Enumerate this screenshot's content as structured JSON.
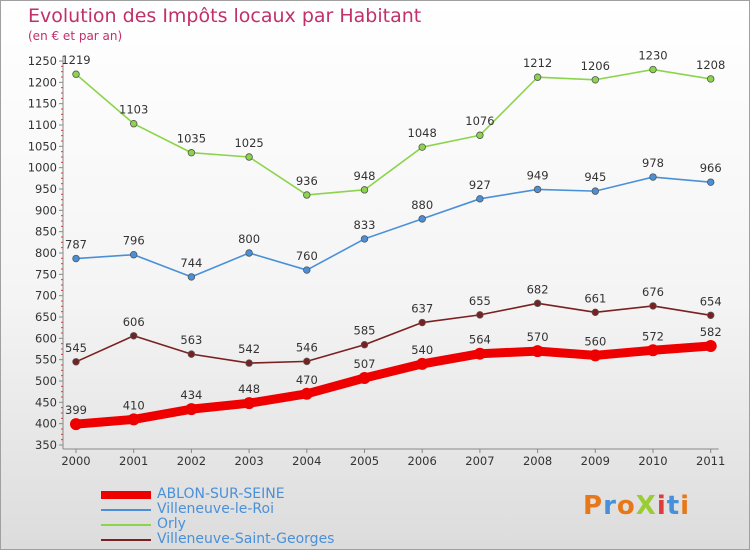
{
  "header": {
    "title": "Evolution des Impôts locaux par Habitant",
    "subtitle": "(en € et par an)"
  },
  "logo": {
    "text": "ProXiti",
    "colors": [
      "#e8771a",
      "#4a90d9",
      "#e8771a",
      "#9acd32",
      "#e03a3a",
      "#4a90d9",
      "#e8771a"
    ]
  },
  "chart_data": {
    "type": "line",
    "title": "Evolution des Impôts locaux par Habitant",
    "subtitle": "(en € et par an)",
    "xlabel": "",
    "ylabel": "",
    "categories": [
      "2000",
      "2001",
      "2002",
      "2003",
      "2004",
      "2005",
      "2006",
      "2007",
      "2008",
      "2009",
      "2010",
      "2011"
    ],
    "ylim": [
      350,
      1250
    ],
    "yticks": [
      350,
      400,
      450,
      500,
      550,
      600,
      650,
      700,
      750,
      800,
      850,
      900,
      950,
      1000,
      1050,
      1100,
      1150,
      1200,
      1250
    ],
    "grid": false,
    "legend_position": "bottom-left",
    "series": [
      {
        "name": "ABLON-SUR-SEINE",
        "color": "#ee0000",
        "values": [
          399,
          410,
          434,
          448,
          470,
          507,
          540,
          564,
          570,
          560,
          572,
          582
        ]
      },
      {
        "name": "Villeneuve-le-Roi",
        "color": "#4a90d9",
        "values": [
          787,
          796,
          744,
          800,
          760,
          833,
          880,
          927,
          949,
          945,
          978,
          966
        ]
      },
      {
        "name": "Orly",
        "color": "#8cd44c",
        "values": [
          1219,
          1103,
          1035,
          1025,
          936,
          948,
          1048,
          1076,
          1212,
          1206,
          1230,
          1208
        ]
      },
      {
        "name": "Villeneuve-Saint-Georges",
        "color": "#7b2020",
        "values": [
          545,
          606,
          563,
          542,
          546,
          585,
          637,
          655,
          682,
          661,
          676,
          654
        ]
      }
    ]
  }
}
